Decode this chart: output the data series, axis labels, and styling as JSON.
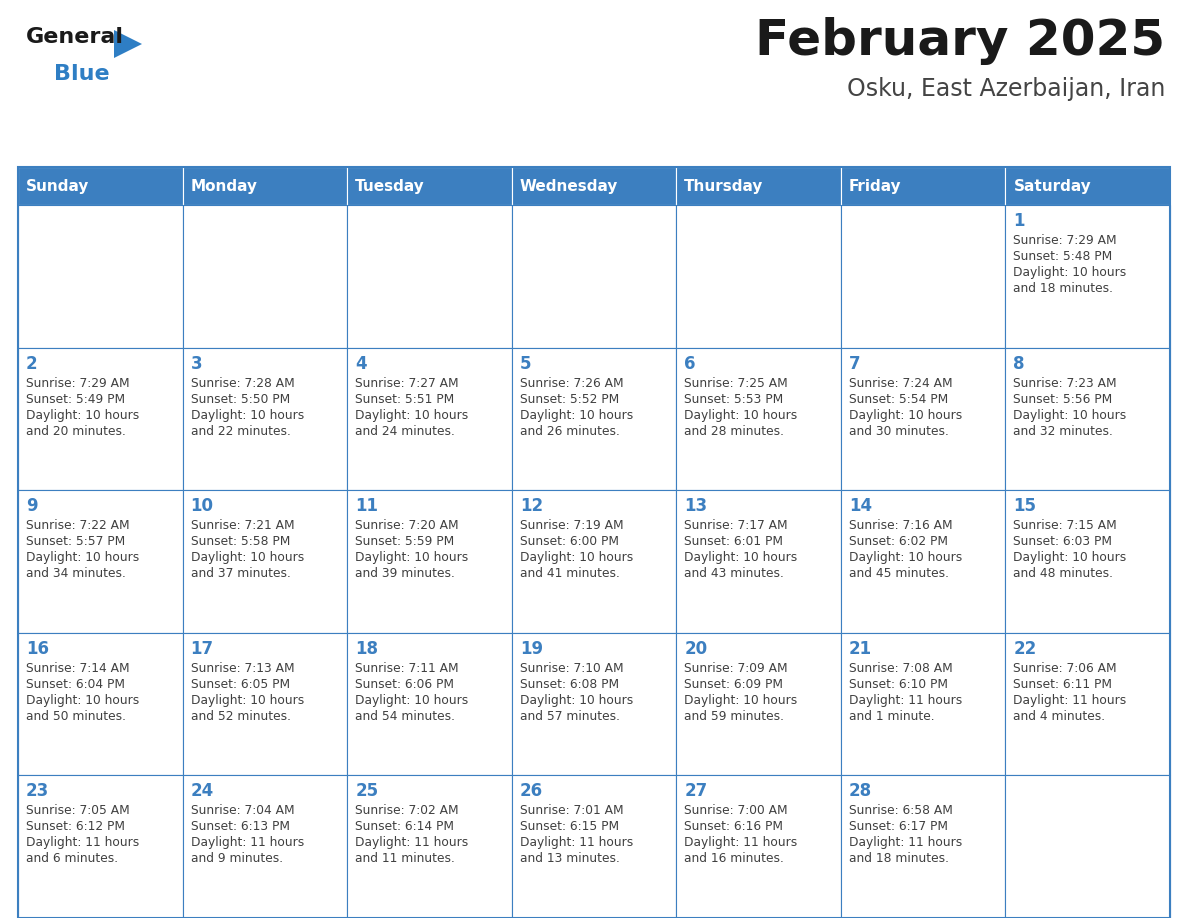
{
  "title": "February 2025",
  "subtitle": "Osku, East Azerbaijan, Iran",
  "days_of_week": [
    "Sunday",
    "Monday",
    "Tuesday",
    "Wednesday",
    "Thursday",
    "Friday",
    "Saturday"
  ],
  "header_bg": "#3c7fc0",
  "header_text_color": "#ffffff",
  "cell_bg": "#ffffff",
  "border_color": "#3c7fc0",
  "text_color": "#404040",
  "day_number_color": "#3c7fc0",
  "title_color": "#1a1a1a",
  "subtitle_color": "#444444",
  "logo_general_color": "#1a1a1a",
  "logo_blue_color": "#2e7ec4",
  "calendar_data": [
    [
      null,
      null,
      null,
      null,
      null,
      null,
      {
        "day": "1",
        "sunrise": "7:29 AM",
        "sunset": "5:48 PM",
        "daylight": "10 hours\nand 18 minutes."
      }
    ],
    [
      {
        "day": "2",
        "sunrise": "7:29 AM",
        "sunset": "5:49 PM",
        "daylight": "10 hours\nand 20 minutes."
      },
      {
        "day": "3",
        "sunrise": "7:28 AM",
        "sunset": "5:50 PM",
        "daylight": "10 hours\nand 22 minutes."
      },
      {
        "day": "4",
        "sunrise": "7:27 AM",
        "sunset": "5:51 PM",
        "daylight": "10 hours\nand 24 minutes."
      },
      {
        "day": "5",
        "sunrise": "7:26 AM",
        "sunset": "5:52 PM",
        "daylight": "10 hours\nand 26 minutes."
      },
      {
        "day": "6",
        "sunrise": "7:25 AM",
        "sunset": "5:53 PM",
        "daylight": "10 hours\nand 28 minutes."
      },
      {
        "day": "7",
        "sunrise": "7:24 AM",
        "sunset": "5:54 PM",
        "daylight": "10 hours\nand 30 minutes."
      },
      {
        "day": "8",
        "sunrise": "7:23 AM",
        "sunset": "5:56 PM",
        "daylight": "10 hours\nand 32 minutes."
      }
    ],
    [
      {
        "day": "9",
        "sunrise": "7:22 AM",
        "sunset": "5:57 PM",
        "daylight": "10 hours\nand 34 minutes."
      },
      {
        "day": "10",
        "sunrise": "7:21 AM",
        "sunset": "5:58 PM",
        "daylight": "10 hours\nand 37 minutes."
      },
      {
        "day": "11",
        "sunrise": "7:20 AM",
        "sunset": "5:59 PM",
        "daylight": "10 hours\nand 39 minutes."
      },
      {
        "day": "12",
        "sunrise": "7:19 AM",
        "sunset": "6:00 PM",
        "daylight": "10 hours\nand 41 minutes."
      },
      {
        "day": "13",
        "sunrise": "7:17 AM",
        "sunset": "6:01 PM",
        "daylight": "10 hours\nand 43 minutes."
      },
      {
        "day": "14",
        "sunrise": "7:16 AM",
        "sunset": "6:02 PM",
        "daylight": "10 hours\nand 45 minutes."
      },
      {
        "day": "15",
        "sunrise": "7:15 AM",
        "sunset": "6:03 PM",
        "daylight": "10 hours\nand 48 minutes."
      }
    ],
    [
      {
        "day": "16",
        "sunrise": "7:14 AM",
        "sunset": "6:04 PM",
        "daylight": "10 hours\nand 50 minutes."
      },
      {
        "day": "17",
        "sunrise": "7:13 AM",
        "sunset": "6:05 PM",
        "daylight": "10 hours\nand 52 minutes."
      },
      {
        "day": "18",
        "sunrise": "7:11 AM",
        "sunset": "6:06 PM",
        "daylight": "10 hours\nand 54 minutes."
      },
      {
        "day": "19",
        "sunrise": "7:10 AM",
        "sunset": "6:08 PM",
        "daylight": "10 hours\nand 57 minutes."
      },
      {
        "day": "20",
        "sunrise": "7:09 AM",
        "sunset": "6:09 PM",
        "daylight": "10 hours\nand 59 minutes."
      },
      {
        "day": "21",
        "sunrise": "7:08 AM",
        "sunset": "6:10 PM",
        "daylight": "11 hours\nand 1 minute."
      },
      {
        "day": "22",
        "sunrise": "7:06 AM",
        "sunset": "6:11 PM",
        "daylight": "11 hours\nand 4 minutes."
      }
    ],
    [
      {
        "day": "23",
        "sunrise": "7:05 AM",
        "sunset": "6:12 PM",
        "daylight": "11 hours\nand 6 minutes."
      },
      {
        "day": "24",
        "sunrise": "7:04 AM",
        "sunset": "6:13 PM",
        "daylight": "11 hours\nand 9 minutes."
      },
      {
        "day": "25",
        "sunrise": "7:02 AM",
        "sunset": "6:14 PM",
        "daylight": "11 hours\nand 11 minutes."
      },
      {
        "day": "26",
        "sunrise": "7:01 AM",
        "sunset": "6:15 PM",
        "daylight": "11 hours\nand 13 minutes."
      },
      {
        "day": "27",
        "sunrise": "7:00 AM",
        "sunset": "6:16 PM",
        "daylight": "11 hours\nand 16 minutes."
      },
      {
        "day": "28",
        "sunrise": "6:58 AM",
        "sunset": "6:17 PM",
        "daylight": "11 hours\nand 18 minutes."
      },
      null
    ]
  ]
}
